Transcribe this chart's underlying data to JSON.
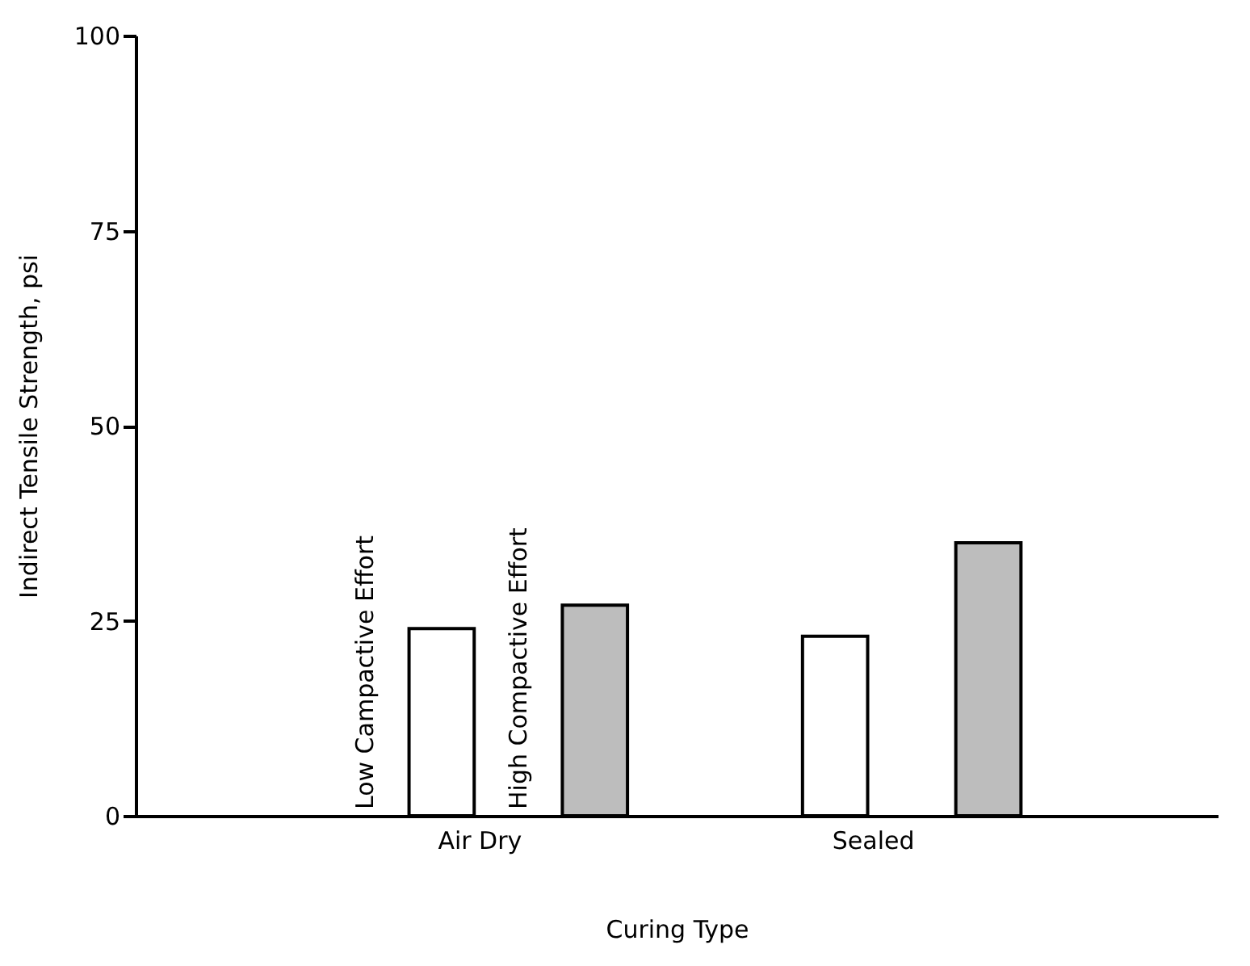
{
  "chart_data": {
    "type": "bar",
    "xlabel": "Curing Type",
    "ylabel": "Indirect Tensile Strength, psi",
    "categories": [
      "Air Dry",
      "Sealed"
    ],
    "series": [
      {
        "name": "Low Campactive Effort",
        "color": "#ffffff",
        "values": [
          24,
          23
        ]
      },
      {
        "name": "High Compactive Effort",
        "color": "#bdbdbd",
        "values": [
          27,
          35
        ]
      }
    ],
    "ylim": [
      0,
      100
    ],
    "yticks": [
      0,
      25,
      50,
      75,
      100
    ],
    "grid": false
  }
}
